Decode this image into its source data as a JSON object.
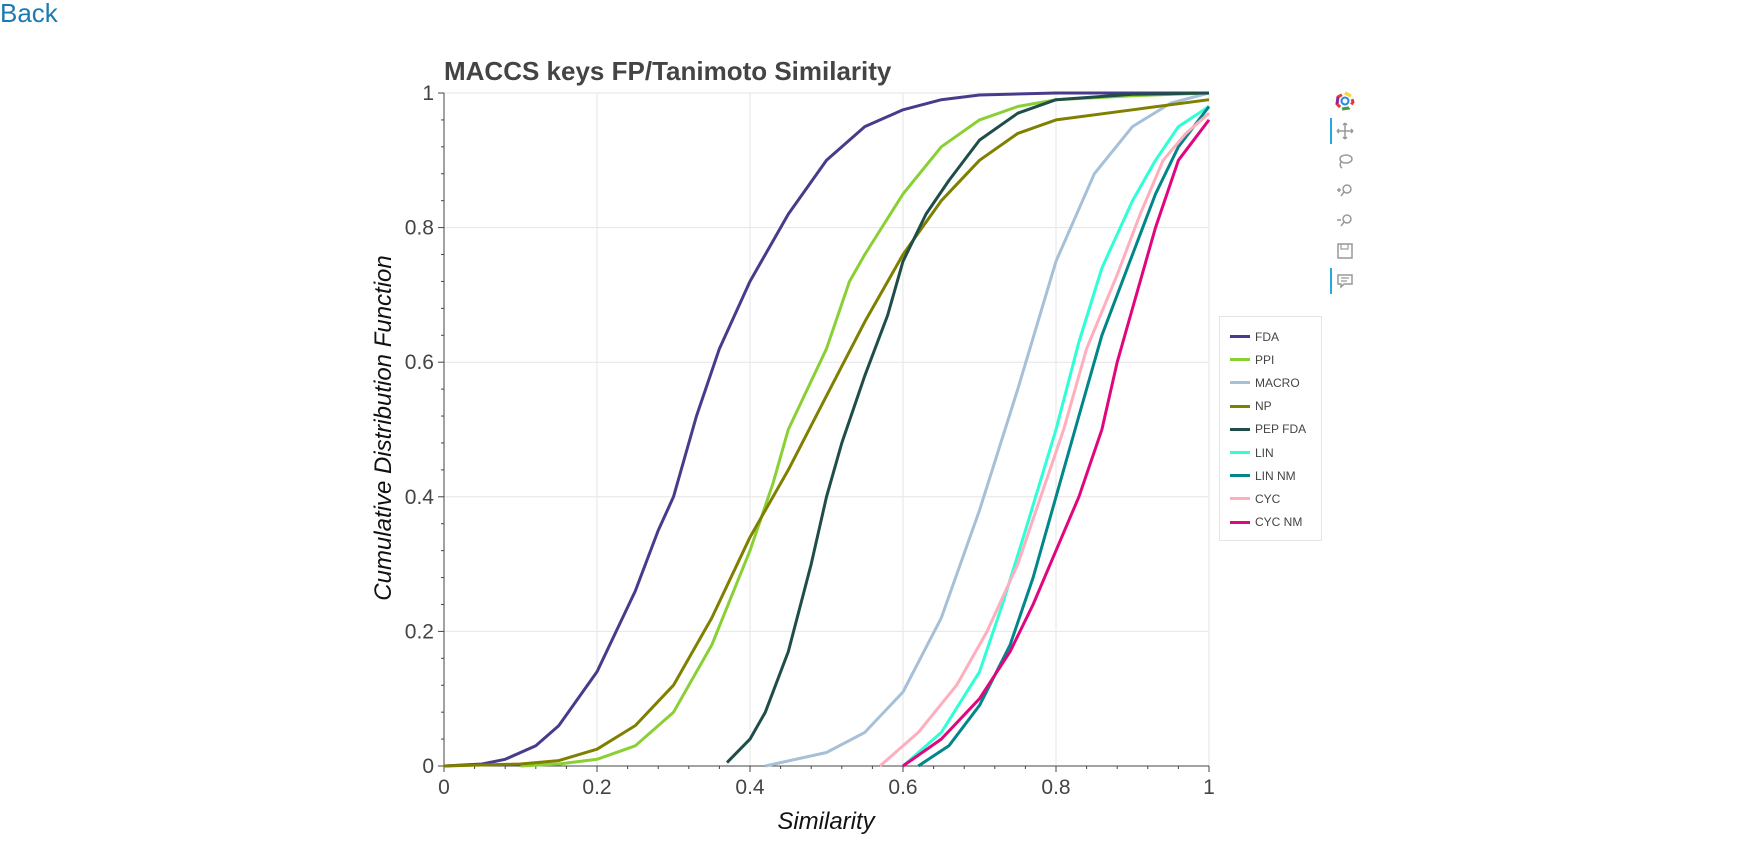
{
  "nav": {
    "back_label": "Back"
  },
  "toolbar": {
    "tools": [
      {
        "name": "bokeh-logo-icon"
      },
      {
        "name": "pan-tool-icon",
        "active": true
      },
      {
        "name": "lasso-select-icon"
      },
      {
        "name": "zoom-in-icon"
      },
      {
        "name": "zoom-out-icon"
      },
      {
        "name": "save-icon"
      },
      {
        "name": "hover-icon",
        "active": true
      }
    ]
  },
  "chart_data": {
    "type": "line",
    "title": "MACCS keys FP/Tanimoto Similarity",
    "xlabel": "Similarity",
    "ylabel": "Cumulative Distribution Function",
    "xlim": [
      0,
      1
    ],
    "ylim": [
      0,
      1
    ],
    "xticks": [
      "0",
      "0.2",
      "0.4",
      "0.6",
      "0.8",
      "1"
    ],
    "yticks": [
      "0",
      "0.2",
      "0.4",
      "0.6",
      "0.8",
      "1"
    ],
    "grid": true,
    "legend_position": "right",
    "series": [
      {
        "name": "FDA",
        "color": "#473c8b",
        "x": [
          0.0,
          0.05,
          0.08,
          0.12,
          0.15,
          0.2,
          0.25,
          0.28,
          0.3,
          0.33,
          0.36,
          0.4,
          0.45,
          0.5,
          0.55,
          0.6,
          0.65,
          0.7,
          0.8,
          1.0
        ],
        "y": [
          0.0,
          0.003,
          0.01,
          0.03,
          0.06,
          0.14,
          0.26,
          0.35,
          0.4,
          0.52,
          0.62,
          0.72,
          0.82,
          0.9,
          0.95,
          0.975,
          0.99,
          0.997,
          1.0,
          1.0
        ]
      },
      {
        "name": "PPI",
        "color": "#8ad035",
        "x": [
          0.1,
          0.15,
          0.2,
          0.25,
          0.3,
          0.35,
          0.4,
          0.43,
          0.45,
          0.5,
          0.53,
          0.55,
          0.6,
          0.65,
          0.7,
          0.75,
          0.8,
          0.9,
          1.0
        ],
        "y": [
          0.0,
          0.003,
          0.01,
          0.03,
          0.08,
          0.18,
          0.32,
          0.42,
          0.5,
          0.62,
          0.72,
          0.76,
          0.85,
          0.92,
          0.96,
          0.98,
          0.99,
          0.996,
          1.0
        ]
      },
      {
        "name": "MACRO",
        "color": "#a6c0d8",
        "x": [
          0.42,
          0.5,
          0.55,
          0.6,
          0.65,
          0.7,
          0.75,
          0.8,
          0.85,
          0.9,
          0.95,
          1.0
        ],
        "y": [
          0.0,
          0.02,
          0.05,
          0.11,
          0.22,
          0.38,
          0.56,
          0.75,
          0.88,
          0.95,
          0.985,
          1.0
        ]
      },
      {
        "name": "NP",
        "color": "#808000",
        "x": [
          0.0,
          0.1,
          0.15,
          0.2,
          0.25,
          0.3,
          0.35,
          0.4,
          0.45,
          0.5,
          0.55,
          0.6,
          0.65,
          0.7,
          0.75,
          0.8,
          0.9,
          1.0
        ],
        "y": [
          0.0,
          0.003,
          0.008,
          0.025,
          0.06,
          0.12,
          0.22,
          0.34,
          0.44,
          0.55,
          0.66,
          0.76,
          0.84,
          0.9,
          0.94,
          0.96,
          0.975,
          0.99
        ]
      },
      {
        "name": "PEP FDA",
        "color": "#1f4e4a",
        "x": [
          0.37,
          0.4,
          0.42,
          0.45,
          0.48,
          0.5,
          0.52,
          0.55,
          0.58,
          0.6,
          0.63,
          0.66,
          0.7,
          0.75,
          0.8,
          0.9,
          1.0
        ],
        "y": [
          0.005,
          0.04,
          0.08,
          0.17,
          0.3,
          0.4,
          0.48,
          0.58,
          0.67,
          0.75,
          0.82,
          0.87,
          0.93,
          0.97,
          0.99,
          0.998,
          1.0
        ]
      },
      {
        "name": "LIN",
        "color": "#2effd7",
        "x": [
          0.6,
          0.65,
          0.7,
          0.73,
          0.76,
          0.8,
          0.83,
          0.86,
          0.9,
          0.93,
          0.96,
          1.0
        ],
        "y": [
          0.0,
          0.05,
          0.14,
          0.24,
          0.35,
          0.5,
          0.63,
          0.74,
          0.84,
          0.9,
          0.95,
          0.98
        ]
      },
      {
        "name": "LIN NM",
        "color": "#00868b",
        "x": [
          0.62,
          0.66,
          0.7,
          0.74,
          0.77,
          0.8,
          0.83,
          0.86,
          0.9,
          0.93,
          0.96,
          1.0
        ],
        "y": [
          0.0,
          0.03,
          0.09,
          0.18,
          0.28,
          0.4,
          0.52,
          0.64,
          0.76,
          0.85,
          0.92,
          0.98
        ]
      },
      {
        "name": "CYC",
        "color": "#ffaebd",
        "x": [
          0.57,
          0.62,
          0.67,
          0.71,
          0.75,
          0.78,
          0.81,
          0.84,
          0.88,
          0.91,
          0.94,
          0.97,
          1.0
        ],
        "y": [
          0.0,
          0.05,
          0.12,
          0.2,
          0.3,
          0.4,
          0.5,
          0.62,
          0.73,
          0.82,
          0.9,
          0.94,
          0.97
        ]
      },
      {
        "name": "CYC NM",
        "color": "#e0067e",
        "x": [
          0.6,
          0.65,
          0.7,
          0.74,
          0.77,
          0.8,
          0.83,
          0.86,
          0.88,
          0.9,
          0.93,
          0.96,
          1.0
        ],
        "y": [
          0.0,
          0.04,
          0.1,
          0.17,
          0.24,
          0.32,
          0.4,
          0.5,
          0.6,
          0.68,
          0.8,
          0.9,
          0.96
        ]
      }
    ]
  }
}
